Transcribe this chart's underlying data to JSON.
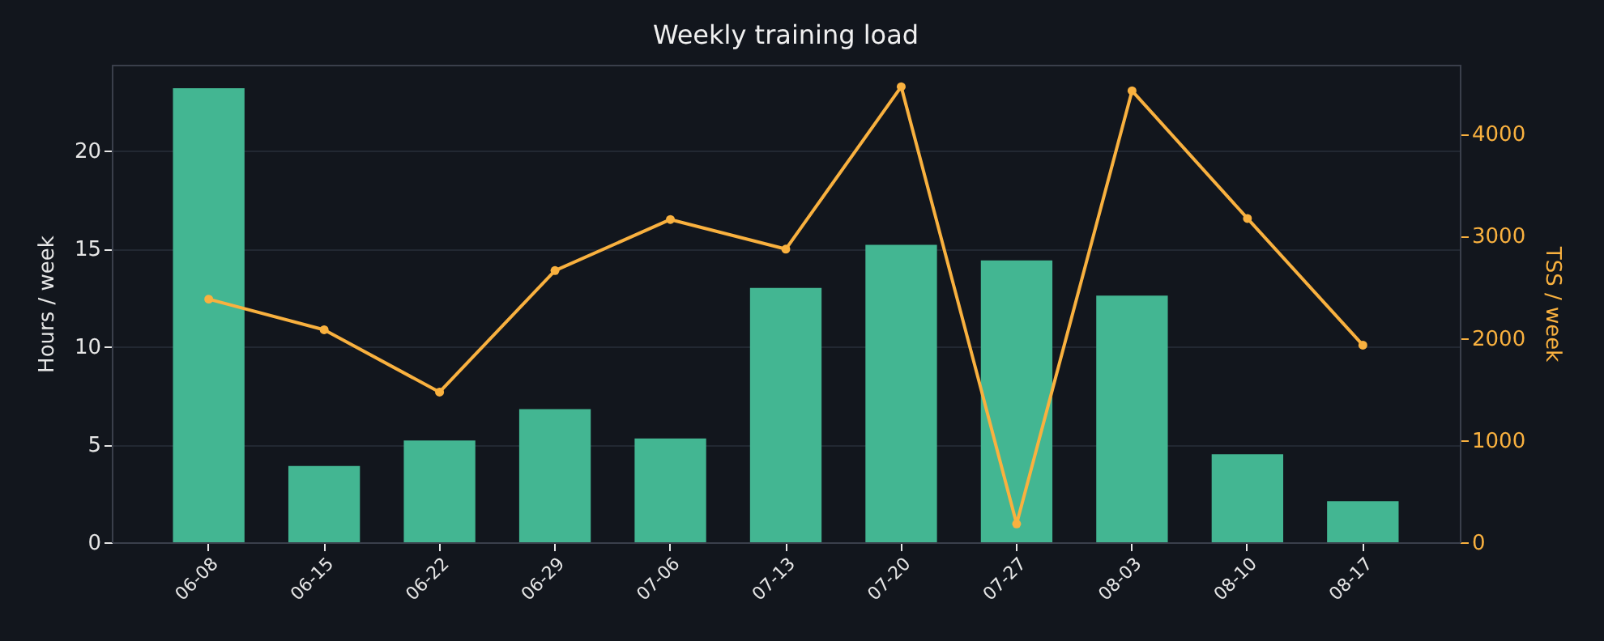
{
  "chart_data": {
    "type": "bar",
    "title": "Weekly training load",
    "ylabel": "Hours / week",
    "y2label": "TSS / week",
    "categories": [
      "06-08",
      "06-15",
      "06-22",
      "06-29",
      "07-06",
      "07-13",
      "07-20",
      "07-27",
      "08-03",
      "08-10",
      "08-17"
    ],
    "series": [
      {
        "color": "#43b692",
        "values": [
          23.2,
          3.9,
          5.2,
          6.8,
          5.3,
          13.0,
          15.2,
          14.4,
          12.6,
          4.5,
          2.1
        ]
      },
      {
        "type": "line",
        "axis": "y2",
        "color": "#f9b13f",
        "values": [
          2380,
          2080,
          1470,
          2660,
          3160,
          2870,
          4460,
          180,
          4420,
          3170,
          1930
        ]
      }
    ],
    "ylim": [
      0,
      24.4
    ],
    "yticks": [
      0,
      5,
      10,
      15,
      20
    ],
    "y2lim": [
      0,
      4675
    ],
    "y2ticks": [
      0,
      1000,
      2000,
      3000,
      4000
    ],
    "grid": "y",
    "marker": "circle",
    "line_style": "solid"
  }
}
